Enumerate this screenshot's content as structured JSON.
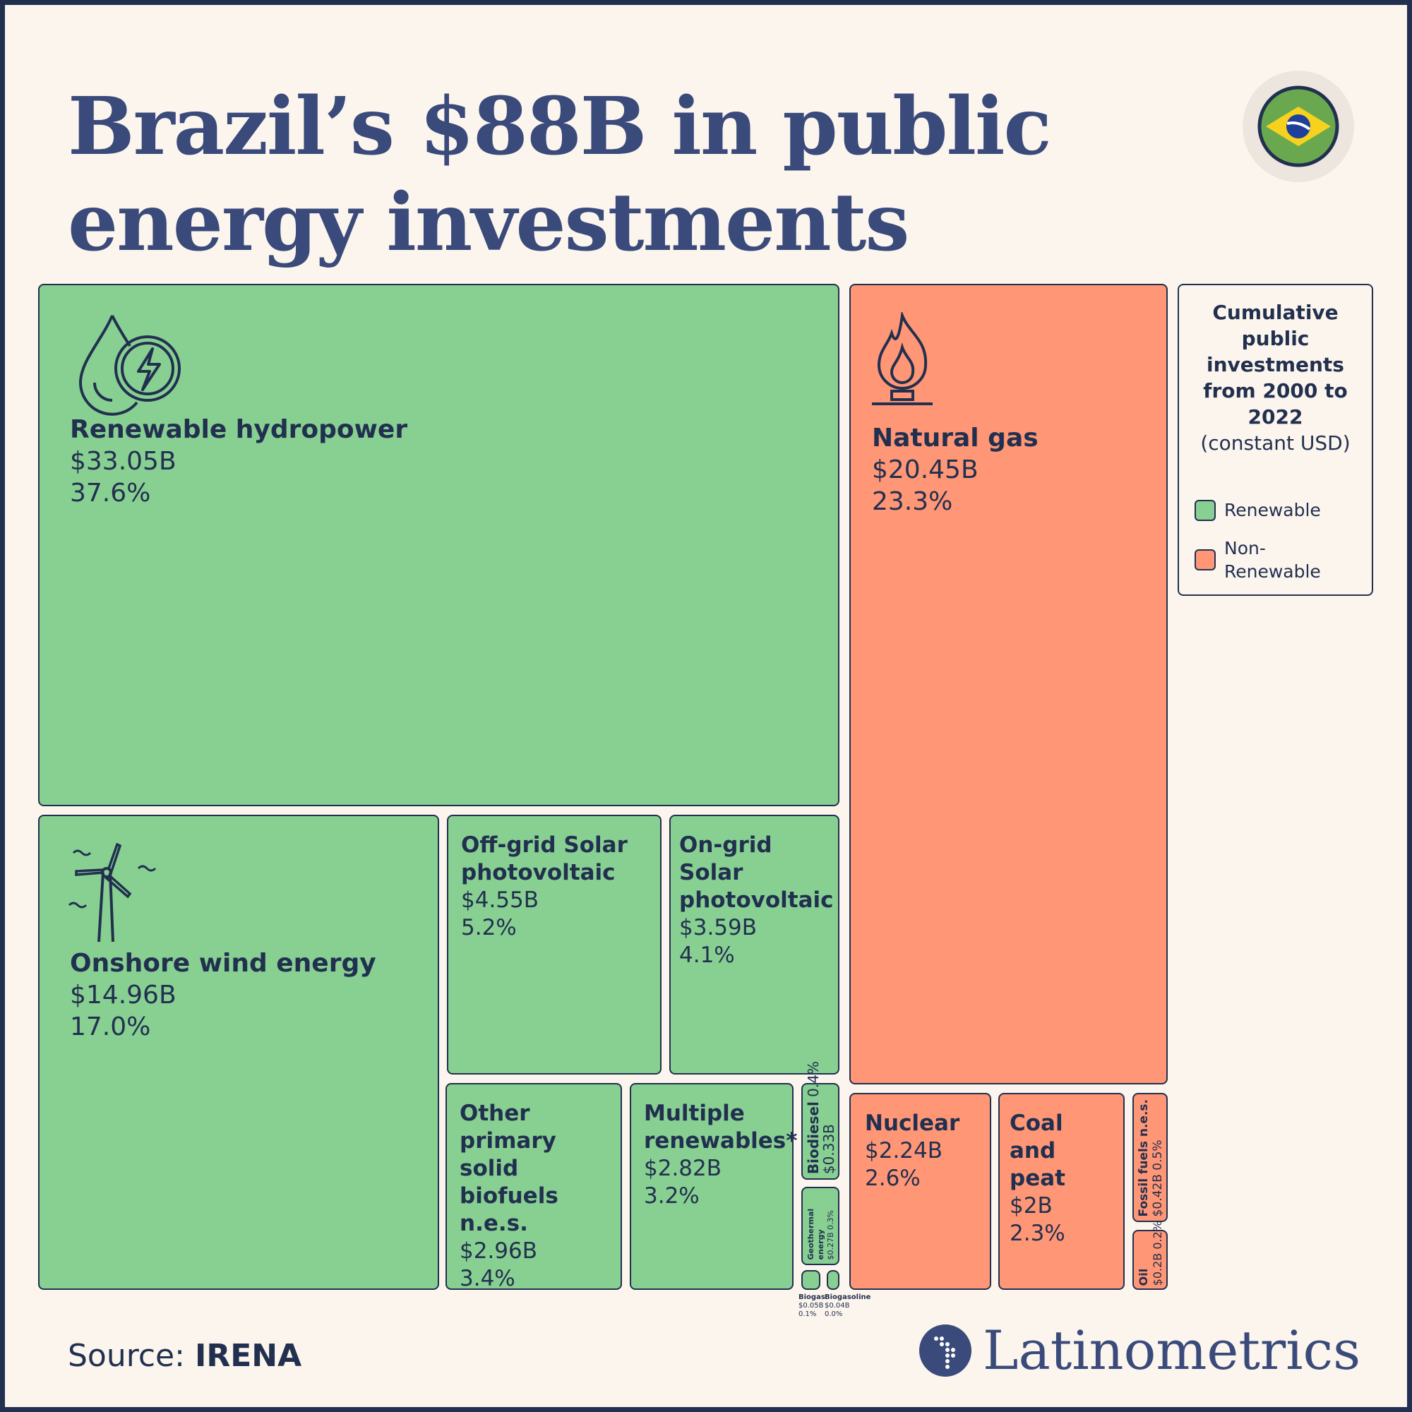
{
  "title": "Brazil’s $88B in public energy investments",
  "flag_icon": "brazil-flag-icon",
  "legend": {
    "title_bold": "Cumulative public investments from 2000 to 2022",
    "title_note": "(constant USD)",
    "items": [
      {
        "label": "Renewable",
        "color": "#88cf92"
      },
      {
        "label": "Non-Renewable",
        "color": "#ff9676"
      }
    ]
  },
  "colors": {
    "renewable": "#88cf92",
    "non_renewable": "#ff9676",
    "outline": "#22304f",
    "title": "#3a4a7a",
    "background": "#fcf5ee"
  },
  "source": {
    "prefix": "Source:",
    "name": "IRENA"
  },
  "brand": "Latinometrics",
  "chart_data": {
    "type": "treemap",
    "title": "Brazil’s $88B in public energy investments",
    "total_usd_billion": 88,
    "unit": "USD billions",
    "items": [
      {
        "name": "Renewable hydropower",
        "value": "$33.05B",
        "pct": "37.6%",
        "value_b": 33.05,
        "category": "Renewable",
        "icon": "water-drop-lightning-icon"
      },
      {
        "name": "Natural gas",
        "value": "$20.45B",
        "pct": "23.3%",
        "value_b": 20.45,
        "category": "Non-Renewable",
        "icon": "gas-flame-icon"
      },
      {
        "name": "Onshore wind energy",
        "value": "$14.96B",
        "pct": "17.0%",
        "value_b": 14.96,
        "category": "Renewable",
        "icon": "wind-turbine-icon"
      },
      {
        "name": "Off-grid Solar photovoltaic",
        "value": "$4.55B",
        "pct": "5.2%",
        "value_b": 4.55,
        "category": "Renewable"
      },
      {
        "name": "On-grid Solar photovoltaic",
        "value": "$3.59B",
        "pct": "4.1%",
        "value_b": 3.59,
        "category": "Renewable"
      },
      {
        "name": "Other primary solid biofuels n.e.s.",
        "value": "$2.96B",
        "pct": "3.4%",
        "value_b": 2.96,
        "category": "Renewable"
      },
      {
        "name": "Multiple renewables*",
        "value": "$2.82B",
        "pct": "3.2%",
        "value_b": 2.82,
        "category": "Renewable"
      },
      {
        "name": "Biodiesel",
        "value": "$0.33B",
        "pct": "0.4%",
        "value_b": 0.33,
        "category": "Renewable"
      },
      {
        "name": "Geothermal energy",
        "value": "$0.27B",
        "pct": "0.3%",
        "value_b": 0.27,
        "category": "Renewable"
      },
      {
        "name": "Biogas",
        "value": "$0.05B",
        "pct": "0.1%",
        "value_b": 0.05,
        "category": "Renewable"
      },
      {
        "name": "Biogasoline",
        "value": "$0.04B",
        "pct": "0.0%",
        "value_b": 0.04,
        "category": "Renewable"
      },
      {
        "name": "Nuclear",
        "value": "$2.24B",
        "pct": "2.6%",
        "value_b": 2.24,
        "category": "Non-Renewable"
      },
      {
        "name": "Coal and peat",
        "value": "$2B",
        "pct": "2.3%",
        "value_b": 2.0,
        "category": "Non-Renewable"
      },
      {
        "name": "Fossil fuels n.e.s.",
        "value": "$0.42B",
        "pct": "0.5%",
        "value_b": 0.42,
        "category": "Non-Renewable"
      },
      {
        "name": "Oil",
        "value": "$0.2B",
        "pct": "0.2%",
        "value_b": 0.2,
        "category": "Non-Renewable"
      }
    ]
  }
}
